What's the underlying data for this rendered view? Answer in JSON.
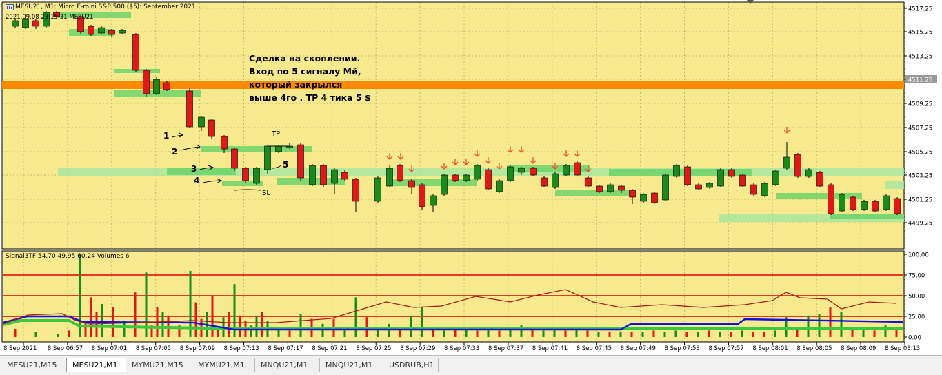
{
  "window": {
    "title": "MESU21, M1:  Micro E-mini S&P 500 ($5): September 2021",
    "subtitle": "2021.09.08 23:15:31  MESU21"
  },
  "annotation": {
    "lines": [
      "Сделка на скоплении.",
      "Вход по 5 сигналу Мй,",
      "который закрылся",
      "выше 4го . ТР 4 тика 5 $"
    ]
  },
  "hand_labels": [
    "1",
    "2",
    "3",
    "4",
    "5",
    "ТР",
    "SL"
  ],
  "price_axis": {
    "labels": [
      "4517.25",
      "4515.25",
      "4513.25",
      "4511.25",
      "4509.25",
      "4507.25",
      "4505.25",
      "4503.25",
      "4501.25",
      "4499.25"
    ],
    "current_price": "4511.25"
  },
  "indicator": {
    "title": "Signal3TF 54.70 49.95 60.24 Volumes 6",
    "levels": [
      "100.00",
      "75.00",
      "50.00",
      "25.00",
      "0.00"
    ]
  },
  "time_axis": {
    "labels": [
      "8 Sep 2021",
      "8 Sep 06:57",
      "8 Sep 07:01",
      "8 Sep 07:05",
      "8 Sep 07:09",
      "8 Sep 07:13",
      "8 Sep 07:17",
      "8 Sep 07:21",
      "8 Sep 07:25",
      "8 Sep 07:29",
      "8 Sep 07:33",
      "8 Sep 07:37",
      "8 Sep 07:41",
      "8 Sep 07:45",
      "8 Sep 07:49",
      "8 Sep 07:53",
      "8 Sep 07:57",
      "8 Sep 08:01",
      "8 Sep 08:05",
      "8 Sep 08:09",
      "8 Sep 08:13"
    ]
  },
  "tabs": [
    {
      "label": "MESU21,M15",
      "active": false
    },
    {
      "label": "MESU21,M1",
      "active": true
    },
    {
      "label": "MYMU21,M15",
      "active": false
    },
    {
      "label": "MYMU21,M1",
      "active": false
    },
    {
      "label": "MNQU21,M1",
      "active": false
    },
    {
      "label": "MNQU21,M1",
      "active": false
    },
    {
      "label": "USDRUB,H1",
      "active": false
    }
  ],
  "colors": {
    "background": "#f7e98e",
    "bull": "#1a8a1a",
    "bear": "#e01818",
    "zone_light": "#a9e6a0",
    "zone_mid": "#6fd36a",
    "resistance": "#ff8a00",
    "signal_blue": "#1010e0",
    "signal_green": "#3cc83c",
    "signal_darkred": "#aa1a1a",
    "level_red": "#dd0000"
  }
}
